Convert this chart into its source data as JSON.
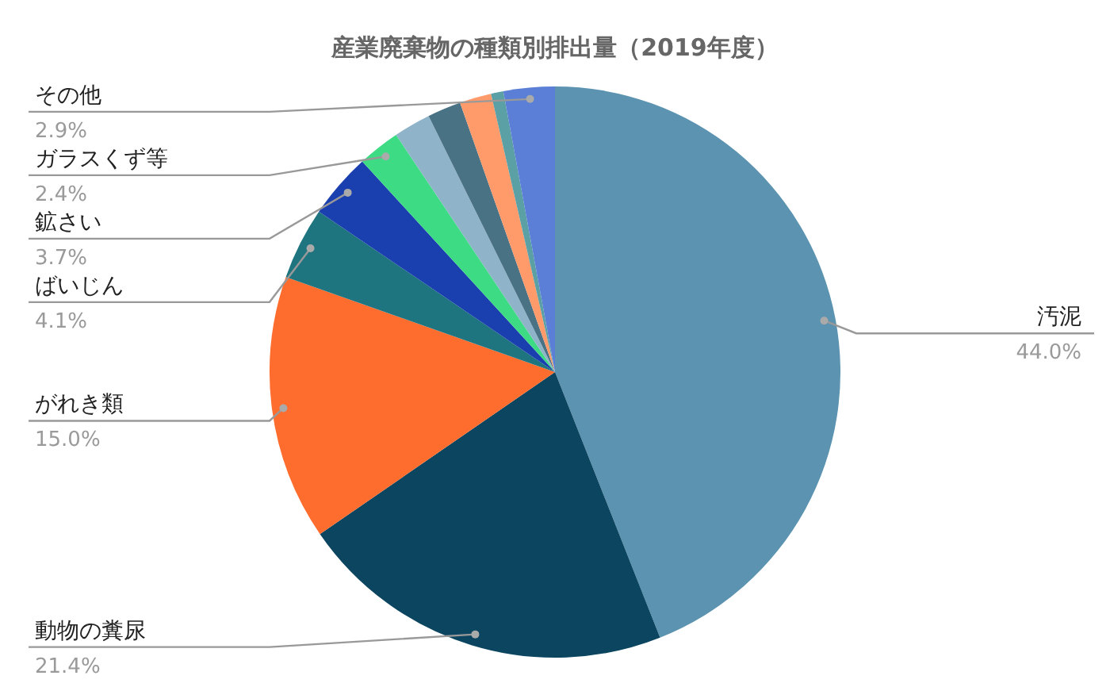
{
  "chart_data": {
    "type": "pie",
    "title": "産業廃棄物の種類別排出量（2019年度）",
    "categories": [
      "汚泥",
      "動物の糞尿",
      "がれき類",
      "ばいじん",
      "鉱さい",
      "ガラスくず等",
      null,
      null,
      null,
      null,
      "その他"
    ],
    "values": [
      44.0,
      21.4,
      15.0,
      4.1,
      3.7,
      2.4,
      2.1,
      1.9,
      1.8,
      0.7,
      2.9
    ],
    "value_labels": [
      "44.0%",
      "21.4%",
      "15.0%",
      "4.1%",
      "3.7%",
      "2.4%",
      null,
      null,
      null,
      null,
      "2.9%"
    ],
    "colors": [
      "#5b93b0",
      "#0c4560",
      "#ff6d2e",
      "#1e7580",
      "#1a3fae",
      "#3ddc84",
      "#8fb4c9",
      "#4a7285",
      "#ff9a6a",
      "#5aa0a5",
      "#5b7fd6"
    ],
    "legend": false
  }
}
